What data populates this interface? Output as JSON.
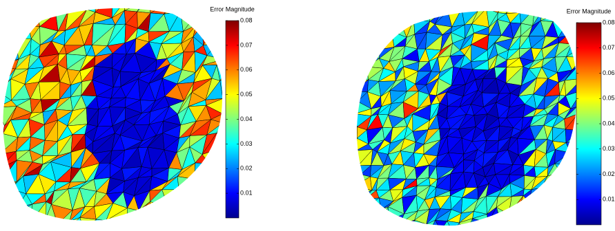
{
  "chart_data": [
    {
      "type": "colorbar",
      "title": "Error Magnitude",
      "ylim": [
        0,
        0.08
      ],
      "yticks": [
        0.01,
        0.02,
        0.03,
        0.04,
        0.05,
        0.06,
        0.07,
        0.08
      ]
    },
    {
      "type": "colorbar",
      "title": "Error Magnitude",
      "ylim": [
        0,
        0.08
      ],
      "yticks": [
        0.01,
        0.02,
        0.03,
        0.04,
        0.05,
        0.06,
        0.07,
        0.08
      ]
    }
  ]
}
